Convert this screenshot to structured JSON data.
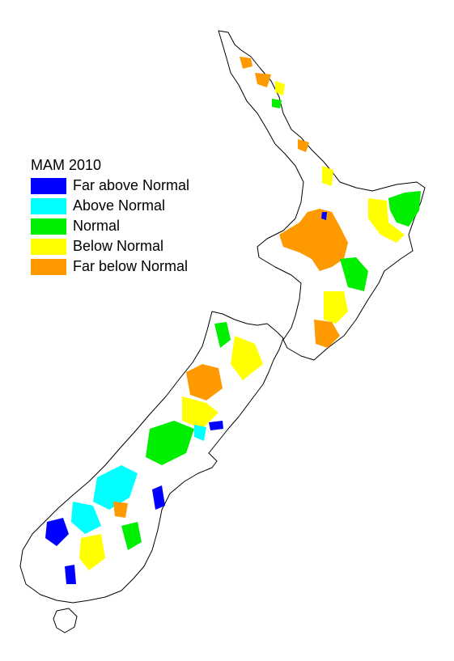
{
  "legend": {
    "title": "MAM 2010",
    "items": [
      {
        "label": "Far above Normal",
        "color": "#0000ff"
      },
      {
        "label": "Above Normal",
        "color": "#00ffff"
      },
      {
        "label": "Normal",
        "color": "#00ee00"
      },
      {
        "label": "Below Normal",
        "color": "#ffff00"
      },
      {
        "label": "Far below Normal",
        "color": "#ff9900"
      }
    ]
  }
}
